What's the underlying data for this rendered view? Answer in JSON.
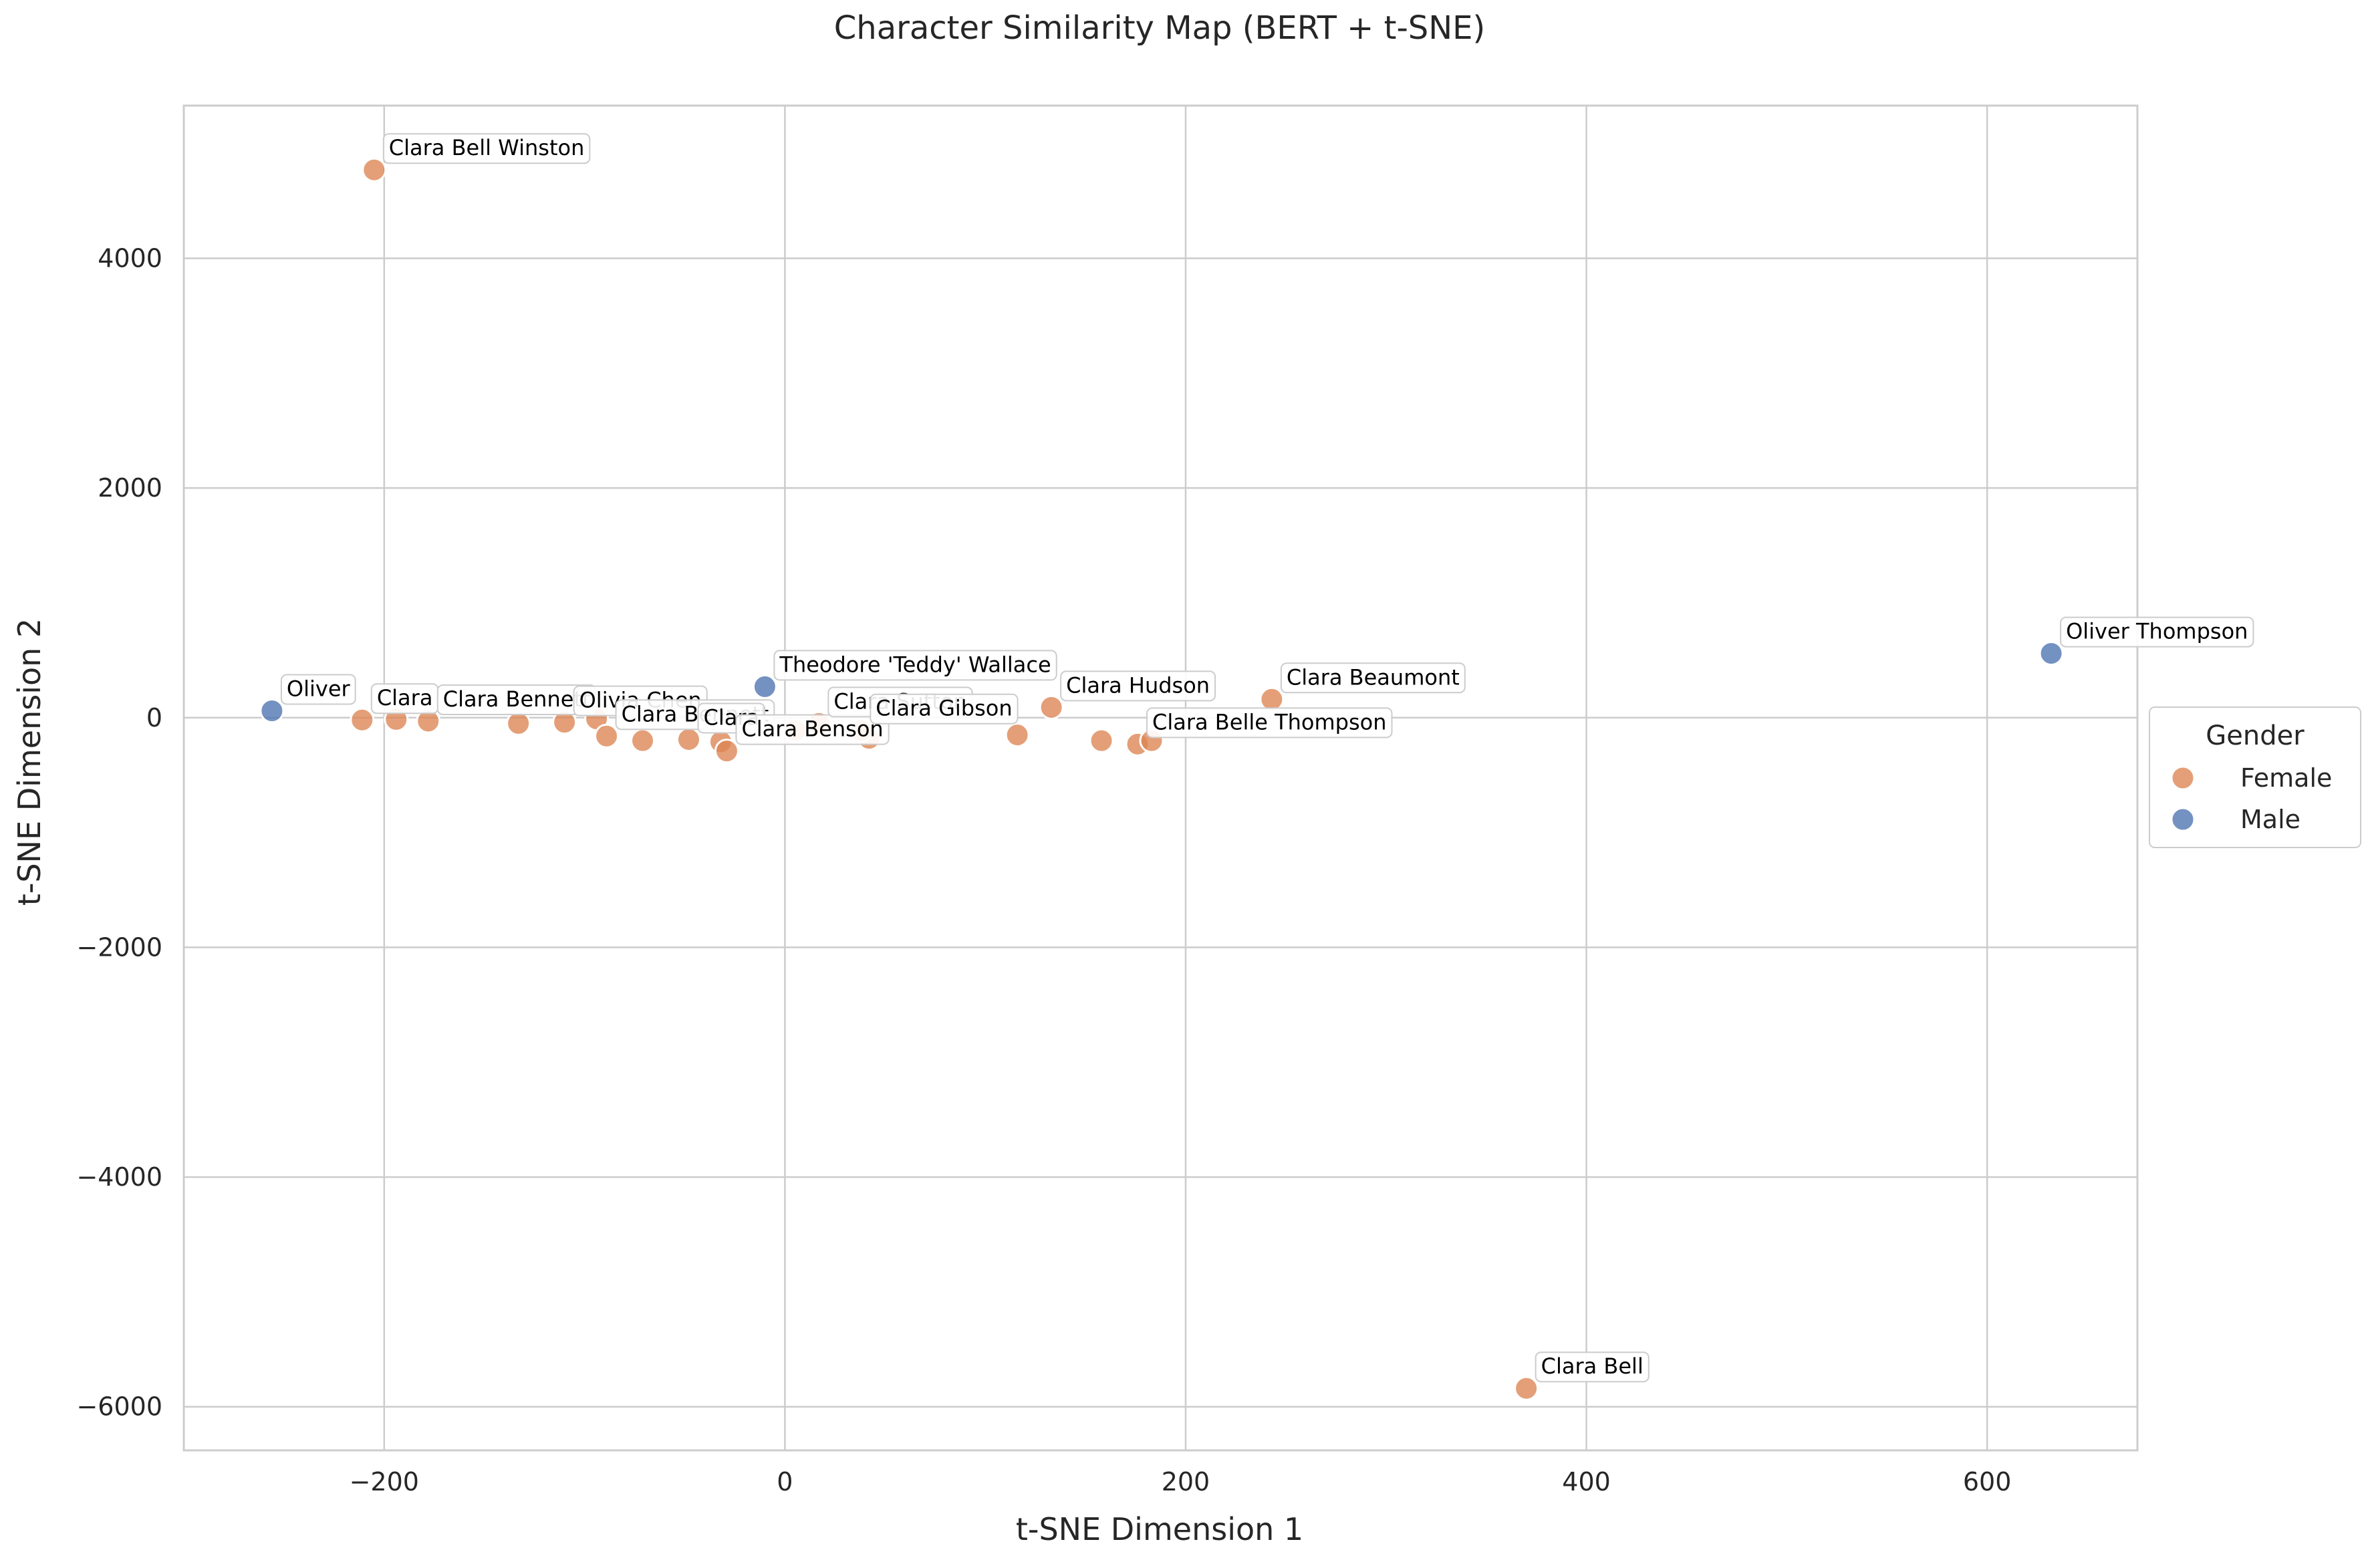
{
  "chart_data": {
    "type": "scatter",
    "title": "Character Similarity Map (BERT + t-SNE)",
    "xlabel": "t-SNE Dimension 1",
    "ylabel": "t-SNE Dimension 2",
    "xlim": [
      -300,
      675
    ],
    "ylim": [
      -6380,
      5330
    ],
    "x_ticks": [
      -200,
      0,
      200,
      400,
      600
    ],
    "y_ticks": [
      -6000,
      -4000,
      -2000,
      0,
      2000,
      4000
    ],
    "x_tick_labels": [
      "−200",
      "0",
      "200",
      "400",
      "600"
    ],
    "y_tick_labels": [
      "−6000",
      "−4000",
      "−2000",
      "0",
      "2000",
      "4000"
    ],
    "grid": true,
    "legend": {
      "title": "Gender",
      "placement": "outside-right",
      "entries": [
        {
          "name": "Female",
          "color": "#DD8452"
        },
        {
          "name": "Male",
          "color": "#4C72B0"
        }
      ]
    },
    "series": [
      {
        "name": "Female",
        "color": "#DD8452",
        "points": [
          {
            "x": -205,
            "y": 4770,
            "label": "Clara Bell Winston"
          },
          {
            "x": 370,
            "y": -5840,
            "label": "Clara Bell"
          },
          {
            "x": -211,
            "y": -20,
            "label": "Clara"
          },
          {
            "x": -194,
            "y": -15,
            "label": ""
          },
          {
            "x": -178,
            "y": -30,
            "label": "Clara Bennett"
          },
          {
            "x": -133,
            "y": -50,
            "label": ""
          },
          {
            "x": -110,
            "y": -40,
            "label": "Olivia Chen"
          },
          {
            "x": -94,
            "y": -10,
            "label": ""
          },
          {
            "x": -89,
            "y": -160,
            "label": "Clara Bennett"
          },
          {
            "x": -71,
            "y": -200,
            "label": ""
          },
          {
            "x": -48,
            "y": -190,
            "label": "Clara"
          },
          {
            "x": -32,
            "y": -210,
            "label": ""
          },
          {
            "x": -29,
            "y": -290,
            "label": "Clara Benson"
          },
          {
            "x": 5,
            "y": -110,
            "label": ""
          },
          {
            "x": 17,
            "y": -50,
            "label": "Clara Sutton"
          },
          {
            "x": 42,
            "y": -180,
            "label": ""
          },
          {
            "x": 38,
            "y": -110,
            "label": "Clara Gibson"
          },
          {
            "x": 116,
            "y": -150,
            "label": ""
          },
          {
            "x": 133,
            "y": 90,
            "label": "Clara Hudson"
          },
          {
            "x": 158,
            "y": -200,
            "label": ""
          },
          {
            "x": 176,
            "y": -230,
            "label": "Clara Belle Thompson"
          },
          {
            "x": 183,
            "y": -200,
            "label": ""
          },
          {
            "x": 243,
            "y": 160,
            "label": "Clara Beaumont"
          }
        ]
      },
      {
        "name": "Male",
        "color": "#4C72B0",
        "points": [
          {
            "x": -256,
            "y": 60,
            "label": "Oliver"
          },
          {
            "x": 632,
            "y": 560,
            "label": "Oliver Thompson"
          },
          {
            "x": -10,
            "y": 270,
            "label": "Theodore 'Teddy' Wallace"
          }
        ]
      }
    ]
  }
}
